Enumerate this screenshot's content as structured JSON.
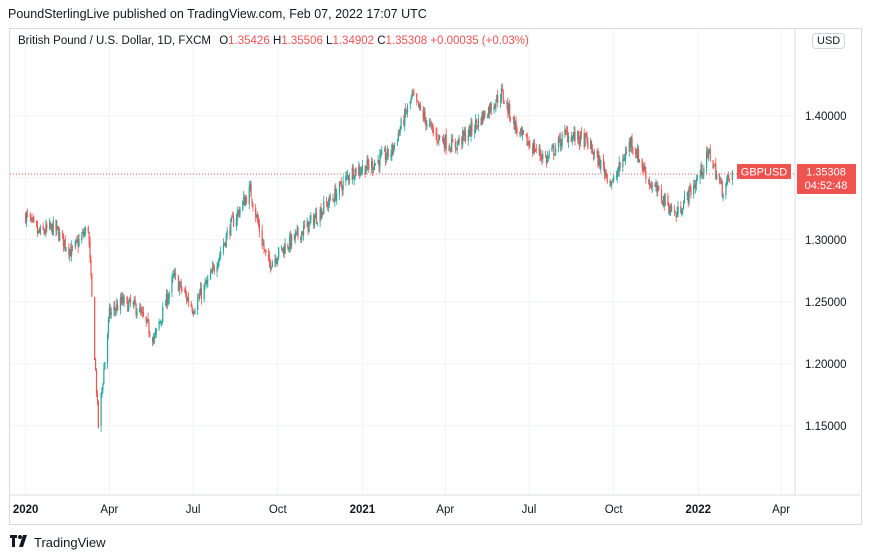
{
  "publisher": "PoundSterlingLive published on TradingView.com, Feb 07, 2022 17:07 UTC",
  "legend": {
    "title": "British Pound / U.S. Dollar, 1D, FXCM",
    "o_label": "O",
    "o": "1.35426",
    "h_label": "H",
    "h": "1.35506",
    "l_label": "L",
    "l": "1.34902",
    "c_label": "C",
    "c": "1.35308",
    "change": "+0.00035 (+0.03%)"
  },
  "currency_button": "USD",
  "price_tag": {
    "symbol": "GBPUSD",
    "price": "1.35308",
    "countdown": "04:52:48"
  },
  "brand": "TradingView",
  "colors": {
    "up": "#26a69a",
    "down": "#ef5350",
    "grid": "#f0f3fa",
    "text": "#131722"
  },
  "chart_data": {
    "type": "candlestick",
    "symbol": "GBPUSD",
    "interval": "1D",
    "y_ticks": [
      1.15,
      1.2,
      1.25,
      1.3,
      1.35,
      1.4
    ],
    "y_tick_labels": [
      "1.15000",
      "1.20000",
      "1.25000",
      "1.30000",
      "1.35000",
      "1.40000"
    ],
    "ylim": [
      1.095,
      1.47
    ],
    "x_ticks": [
      "2020",
      "Apr",
      "Jul",
      "Oct",
      "2021",
      "Apr",
      "Jul",
      "Oct",
      "2022",
      "Apr"
    ],
    "x_tick_bold": [
      true,
      false,
      false,
      false,
      true,
      false,
      false,
      false,
      true,
      false
    ],
    "last_close": 1.35308,
    "grid": true,
    "series": [
      {
        "date": "2020-01-01",
        "close": 1.32
      },
      {
        "date": "2020-01-15",
        "close": 1.305
      },
      {
        "date": "2020-02-01",
        "close": 1.31
      },
      {
        "date": "2020-02-20",
        "close": 1.29
      },
      {
        "date": "2020-03-09",
        "close": 1.31
      },
      {
        "date": "2020-03-20",
        "close": 1.15
      },
      {
        "date": "2020-04-01",
        "close": 1.24
      },
      {
        "date": "2020-04-15",
        "close": 1.25
      },
      {
        "date": "2020-05-01",
        "close": 1.245
      },
      {
        "date": "2020-05-20",
        "close": 1.22
      },
      {
        "date": "2020-06-10",
        "close": 1.27
      },
      {
        "date": "2020-07-01",
        "close": 1.245
      },
      {
        "date": "2020-07-20",
        "close": 1.27
      },
      {
        "date": "2020-08-10",
        "close": 1.31
      },
      {
        "date": "2020-09-01",
        "close": 1.34
      },
      {
        "date": "2020-09-20",
        "close": 1.28
      },
      {
        "date": "2020-10-10",
        "close": 1.295
      },
      {
        "date": "2020-11-01",
        "close": 1.31
      },
      {
        "date": "2020-12-01",
        "close": 1.335
      },
      {
        "date": "2020-12-20",
        "close": 1.355
      },
      {
        "date": "2021-01-10",
        "close": 1.36
      },
      {
        "date": "2021-02-01",
        "close": 1.37
      },
      {
        "date": "2021-02-24",
        "close": 1.415
      },
      {
        "date": "2021-03-20",
        "close": 1.385
      },
      {
        "date": "2021-04-10",
        "close": 1.375
      },
      {
        "date": "2021-05-01",
        "close": 1.39
      },
      {
        "date": "2021-06-01",
        "close": 1.418
      },
      {
        "date": "2021-06-20",
        "close": 1.385
      },
      {
        "date": "2021-07-20",
        "close": 1.365
      },
      {
        "date": "2021-08-10",
        "close": 1.385
      },
      {
        "date": "2021-09-01",
        "close": 1.38
      },
      {
        "date": "2021-09-30",
        "close": 1.345
      },
      {
        "date": "2021-10-20",
        "close": 1.38
      },
      {
        "date": "2021-11-10",
        "close": 1.345
      },
      {
        "date": "2021-12-08",
        "close": 1.32
      },
      {
        "date": "2022-01-01",
        "close": 1.35
      },
      {
        "date": "2022-01-13",
        "close": 1.37
      },
      {
        "date": "2022-01-27",
        "close": 1.34
      },
      {
        "date": "2022-02-07",
        "close": 1.353
      }
    ]
  }
}
